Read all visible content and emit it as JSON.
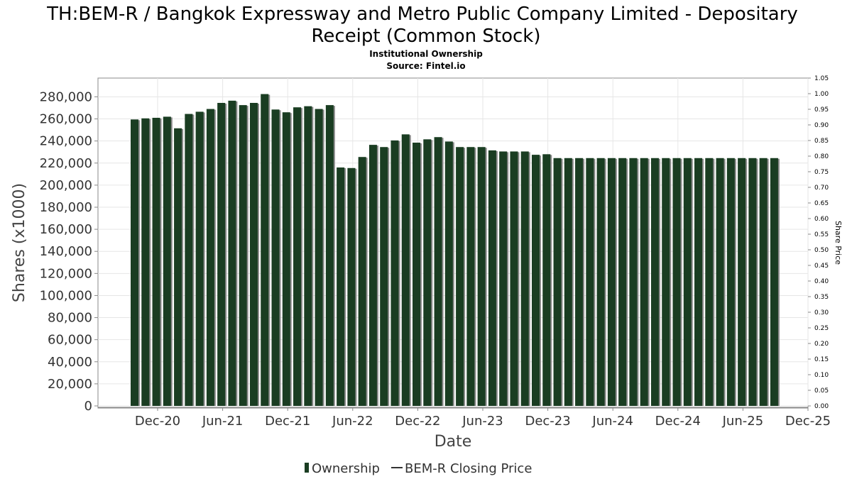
{
  "chart_data": {
    "type": "bar",
    "title_line1": "TH:BEM-R / Bangkok Expressway and Metro Public Company Limited - Depositary",
    "title_line2": "Receipt (Common Stock)",
    "subtitle_line1": "Institutional Ownership",
    "subtitle_line2": "Source: Fintel.io",
    "xlabel": "Date",
    "ylabel": "Shares (x1000)",
    "ylabel_right": "Share Price",
    "ylim": [
      0,
      297000
    ],
    "ylim_right": [
      0,
      1.05
    ],
    "y_ticks": [
      0,
      20000,
      40000,
      60000,
      80000,
      100000,
      120000,
      140000,
      160000,
      180000,
      200000,
      220000,
      240000,
      260000,
      280000
    ],
    "y_tick_labels": [
      "0",
      "20,000",
      "40,000",
      "60,000",
      "80,000",
      "100,000",
      "120,000",
      "140,000",
      "160,000",
      "180,000",
      "200,000",
      "220,000",
      "240,000",
      "260,000",
      "280,000"
    ],
    "y_right_tick_labels": [
      "0.00",
      "0.05",
      "0.10",
      "0.15",
      "0.20",
      "0.25",
      "0.30",
      "0.35",
      "0.40",
      "0.45",
      "0.50",
      "0.55",
      "0.60",
      "0.65",
      "0.70",
      "0.75",
      "0.80",
      "0.85",
      "0.90",
      "0.95",
      "1.00",
      "1.05"
    ],
    "x_ticks": [
      "Dec-20",
      "Jun-21",
      "Dec-21",
      "Jun-22",
      "Dec-22",
      "Jun-23",
      "Dec-23",
      "Jun-24",
      "Dec-24",
      "Jun-25",
      "Dec-25"
    ],
    "grid": true,
    "legend_position": "bottom",
    "series": [
      {
        "name": "Ownership",
        "color": "#1a3d22",
        "values": [
          259500,
          260500,
          261000,
          262000,
          251500,
          264500,
          266500,
          269000,
          274500,
          276500,
          272500,
          274500,
          282500,
          268500,
          266000,
          270500,
          271500,
          269000,
          272500,
          216000,
          215500,
          225500,
          236500,
          234500,
          240500,
          246000,
          238500,
          241500,
          243500,
          239500,
          234500,
          234500,
          234500,
          231500,
          230500,
          230500,
          230500,
          227500,
          228000,
          224500,
          224500,
          224500,
          224500,
          224500,
          224500,
          224500,
          224500,
          224500,
          224500,
          224500,
          224500,
          224500,
          224500,
          224500,
          224500,
          224500,
          224500,
          224500,
          224500,
          224500
        ]
      },
      {
        "name": "BEM-R Closing Price",
        "color": "#333333",
        "values": []
      }
    ]
  }
}
